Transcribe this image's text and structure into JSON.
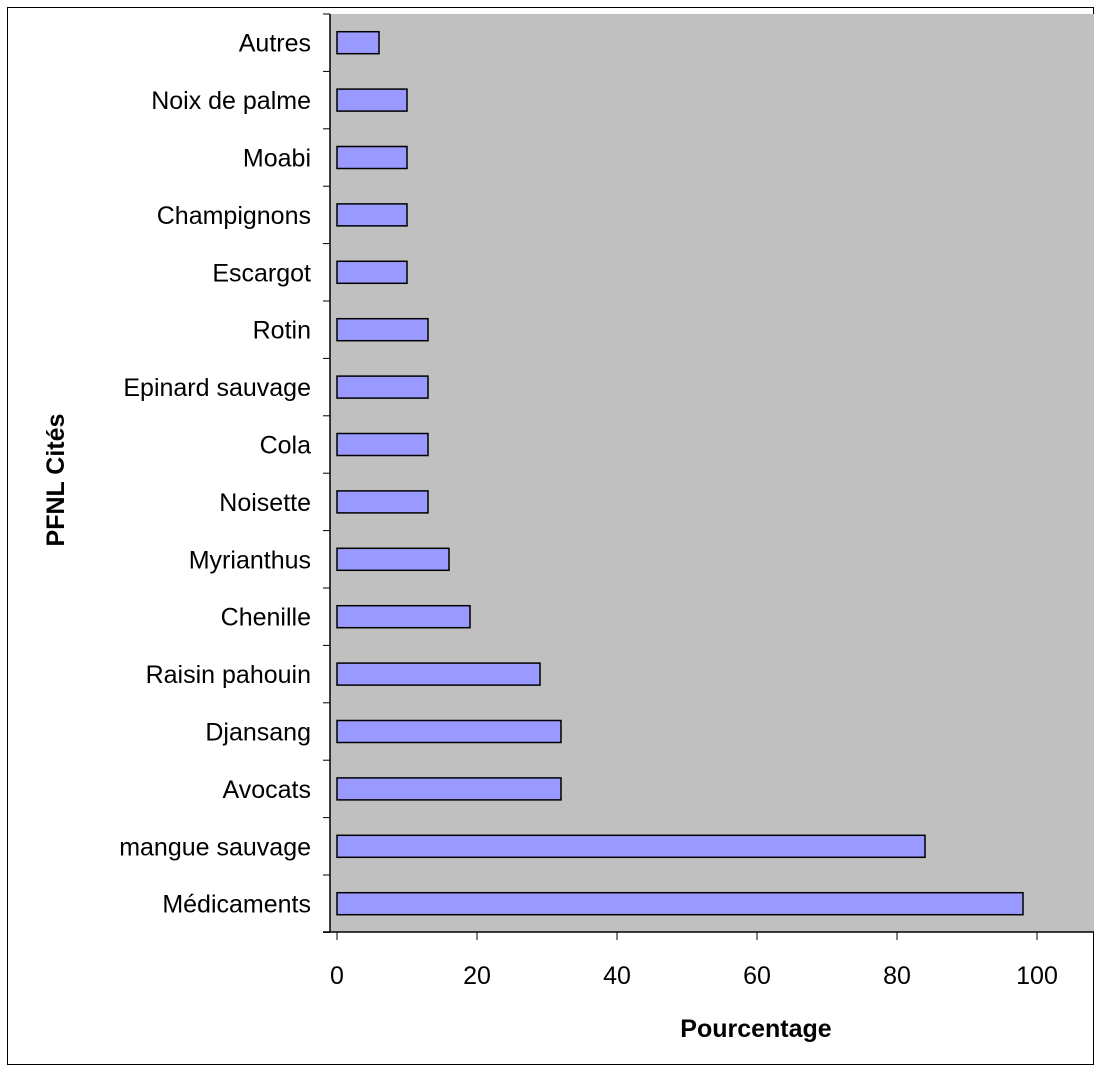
{
  "chart_data": {
    "type": "bar",
    "orientation": "horizontal",
    "categories": [
      "Médicaments",
      "mangue sauvage",
      "Avocats",
      "Djansang",
      "Raisin pahouin",
      "Chenille",
      "Myrianthus",
      "Noisette",
      "Cola",
      "Epinard sauvage",
      "Rotin",
      "Escargot",
      "Champignons",
      "Moabi",
      "Noix de palme",
      "Autres"
    ],
    "values": [
      98,
      84,
      32,
      32,
      29,
      19,
      16,
      13,
      13,
      13,
      13,
      10,
      10,
      10,
      10,
      6
    ],
    "xlabel": "Pourcentage",
    "ylabel": "PFNL Cités",
    "xlim": [
      0,
      110
    ],
    "xticks": [
      0,
      20,
      40,
      60,
      80,
      100
    ],
    "grid": false,
    "colors": {
      "bar_fill": "#9999ff",
      "bar_stroke": "#000000",
      "plot_background": "#c0c0c0"
    }
  }
}
